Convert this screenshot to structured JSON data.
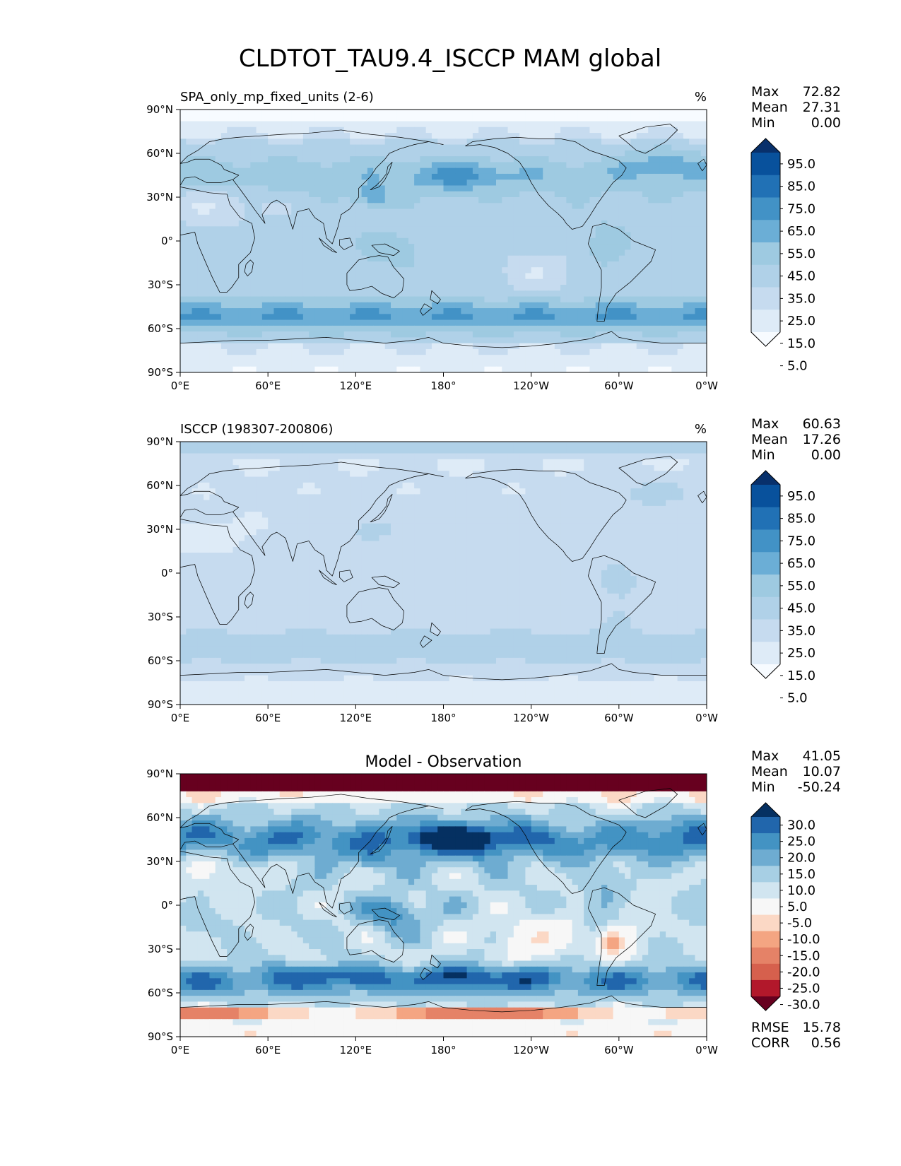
{
  "figure_title": "CLDTOT_TAU9.4_ISCCP MAM global",
  "colors": {
    "abs_bins": [
      "#f7fbff",
      "#deebf7",
      "#c6dbef",
      "#b0d1e8",
      "#9ecae1",
      "#6baed6",
      "#4292c6",
      "#2171b5",
      "#08519c",
      "#08306b"
    ],
    "diff_bins": [
      "#67001f",
      "#b2182b",
      "#d6604d",
      "#e58267",
      "#f4a582",
      "#fbd8c5",
      "#f7f7f7",
      "#d1e5f0",
      "#a7cfe4",
      "#6eacd1",
      "#4393c3",
      "#2166ac",
      "#053061"
    ],
    "coastline": "#000000"
  },
  "chart_data": [
    {
      "type": "heatmap",
      "title": "SPA_only_mp_fixed_units (2-6)",
      "units": "%",
      "stats": {
        "max_label": "Max",
        "max": "72.82",
        "mean_label": "Mean",
        "mean": "27.31",
        "min_label": "Min",
        "min": "0.00"
      },
      "xticks": [
        "0°E",
        "60°E",
        "120°E",
        "180°",
        "120°W",
        "60°W",
        "0°W"
      ],
      "yticks": [
        "90°N",
        "60°N",
        "30°N",
        "0°",
        "30°S",
        "60°S",
        "90°S"
      ],
      "colorbar": {
        "levels": [
          "95.0",
          "85.0",
          "75.0",
          "65.0",
          "55.0",
          "45.0",
          "35.0",
          "25.0",
          "15.0",
          "5.0"
        ],
        "extend": "both"
      }
    },
    {
      "type": "heatmap",
      "title": "ISCCP (198307-200806)",
      "units": "%",
      "stats": {
        "max_label": "Max",
        "max": "60.63",
        "mean_label": "Mean",
        "mean": "17.26",
        "min_label": "Min",
        "min": "0.00"
      },
      "xticks": [
        "0°E",
        "60°E",
        "120°E",
        "180°",
        "120°W",
        "60°W",
        "0°W"
      ],
      "yticks": [
        "90°N",
        "60°N",
        "30°N",
        "0°",
        "30°S",
        "60°S",
        "90°S"
      ],
      "colorbar": {
        "levels": [
          "95.0",
          "85.0",
          "75.0",
          "65.0",
          "55.0",
          "45.0",
          "35.0",
          "25.0",
          "15.0",
          "5.0"
        ],
        "extend": "both"
      }
    },
    {
      "type": "heatmap",
      "title": "Model - Observation",
      "units": "",
      "stats": {
        "max_label": "Max",
        "max": "41.05",
        "mean_label": "Mean",
        "mean": "10.07",
        "min_label": "Min",
        "min": "-50.24"
      },
      "xticks": [
        "0°E",
        "60°E",
        "120°E",
        "180°",
        "120°W",
        "60°W",
        "0°W"
      ],
      "yticks": [
        "90°N",
        "60°N",
        "30°N",
        "0°",
        "30°S",
        "60°S",
        "90°S"
      ],
      "colorbar": {
        "levels": [
          "30.0",
          "25.0",
          "20.0",
          "15.0",
          "10.0",
          "5.0",
          "-5.0",
          "-10.0",
          "-15.0",
          "-20.0",
          "-25.0",
          "-30.0"
        ],
        "extend": "both"
      },
      "metrics": {
        "rmse_label": "RMSE",
        "rmse": "15.78",
        "corr_label": "CORR",
        "corr": "0.56"
      }
    }
  ]
}
